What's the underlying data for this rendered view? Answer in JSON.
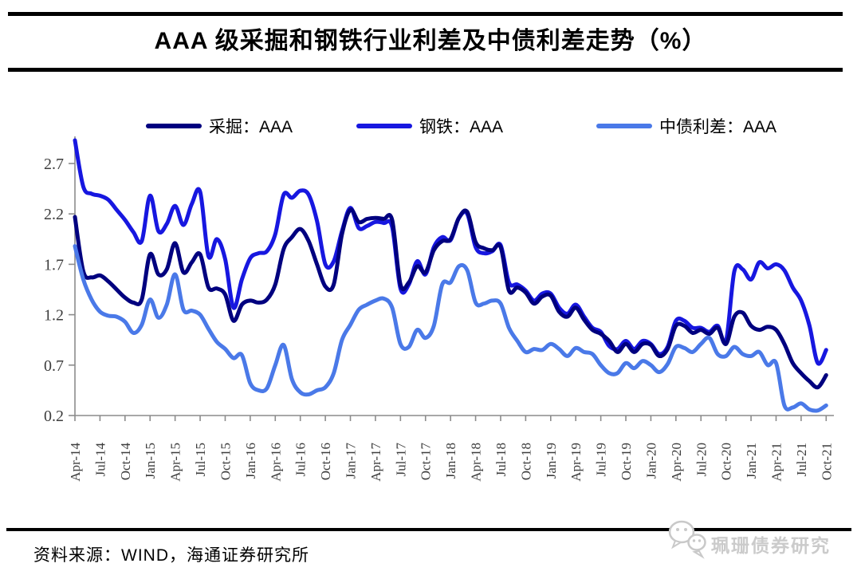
{
  "title": {
    "text": "AAA 级采掘和钢铁行业利差及中债利差走势（%）"
  },
  "legend": {
    "items": [
      {
        "label": "采掘：AAA",
        "color": "#00007f"
      },
      {
        "label": "钢铁：AAA",
        "color": "#1717e0"
      },
      {
        "label": "中债利差：AAA",
        "color": "#4a79e8"
      }
    ]
  },
  "footer": {
    "source": "资料来源：WIND，海通证券研究所",
    "watermark": "珮珊债券研究",
    "watermark_icon": "wechat-chat-bubbles"
  },
  "chart_data": {
    "type": "line",
    "title": "AAA 级采掘和钢铁行业利差及中债利差走势（%）",
    "unit": "%",
    "x_frequency": "monthly",
    "x_start": "Apr-14",
    "x_end": "Oct-21",
    "x_tick_labels": [
      "Apr-14",
      "Jul-14",
      "Oct-14",
      "Jan-15",
      "Apr-15",
      "Jul-15",
      "Oct-15",
      "Jan-16",
      "Apr-16",
      "Jul-16",
      "Oct-16",
      "Jan-17",
      "Apr-17",
      "Jul-17",
      "Oct-17",
      "Jan-18",
      "Apr-18",
      "Jul-18",
      "Oct-18",
      "Jan-19",
      "Apr-19",
      "Jul-19",
      "Oct-19",
      "Jan-20",
      "Apr-20",
      "Jul-20",
      "Oct-20",
      "Jan-21",
      "Apr-21",
      "Jul-21",
      "Oct-21"
    ],
    "yticks": [
      0.2,
      0.7,
      1.2,
      1.7,
      2.2,
      2.7
    ],
    "ylim": [
      0.1,
      2.95
    ],
    "grid": false,
    "legend_position": "top",
    "axis_color": "#8c8c8c",
    "tick_label_color": "#3d3d3d",
    "series": [
      {
        "name": "采掘：AAA",
        "color": "#00007f",
        "values": [
          2.17,
          1.63,
          1.57,
          1.59,
          1.53,
          1.45,
          1.37,
          1.32,
          1.35,
          1.8,
          1.6,
          1.65,
          1.91,
          1.62,
          1.72,
          1.8,
          1.47,
          1.46,
          1.4,
          1.14,
          1.3,
          1.34,
          1.32,
          1.35,
          1.5,
          1.85,
          1.97,
          2.05,
          1.93,
          1.7,
          1.48,
          1.5,
          2.0,
          2.24,
          2.12,
          2.15,
          2.16,
          2.15,
          2.14,
          1.5,
          1.52,
          1.68,
          1.62,
          1.84,
          1.93,
          1.95,
          2.16,
          2.22,
          1.92,
          1.86,
          1.84,
          1.87,
          1.44,
          1.47,
          1.42,
          1.31,
          1.38,
          1.39,
          1.23,
          1.18,
          1.27,
          1.15,
          1.05,
          1.01,
          0.94,
          0.83,
          0.91,
          0.83,
          0.91,
          0.9,
          0.79,
          0.86,
          1.09,
          1.09,
          1.02,
          1.05,
          1.01,
          1.07,
          0.91,
          1.18,
          1.22,
          1.09,
          1.05,
          1.08,
          1.05,
          0.91,
          0.72,
          0.62,
          0.54,
          0.48,
          0.6
        ]
      },
      {
        "name": "钢铁：AAA",
        "color": "#1717e0",
        "values": [
          2.93,
          2.47,
          2.4,
          2.38,
          2.34,
          2.24,
          2.14,
          2.02,
          1.93,
          2.38,
          2.03,
          2.1,
          2.28,
          2.09,
          2.3,
          2.42,
          1.78,
          1.95,
          1.75,
          1.27,
          1.55,
          1.76,
          1.81,
          1.83,
          2.0,
          2.39,
          2.36,
          2.43,
          2.39,
          2.13,
          1.7,
          1.73,
          2.03,
          2.26,
          2.06,
          2.08,
          2.12,
          2.11,
          2.07,
          1.46,
          1.5,
          1.73,
          1.6,
          1.87,
          1.97,
          1.94,
          2.16,
          2.2,
          1.87,
          1.81,
          1.83,
          1.89,
          1.52,
          1.5,
          1.44,
          1.34,
          1.41,
          1.41,
          1.27,
          1.21,
          1.3,
          1.18,
          1.07,
          1.03,
          0.89,
          0.86,
          0.94,
          0.86,
          0.94,
          0.91,
          0.81,
          0.88,
          1.14,
          1.14,
          1.07,
          1.07,
          1.03,
          1.09,
          0.94,
          1.63,
          1.65,
          1.55,
          1.72,
          1.66,
          1.7,
          1.64,
          1.47,
          1.34,
          1.09,
          0.72,
          0.85
        ]
      },
      {
        "name": "中债利差：AAA",
        "color": "#4a79e8",
        "values": [
          1.88,
          1.55,
          1.35,
          1.23,
          1.19,
          1.18,
          1.13,
          1.02,
          1.1,
          1.35,
          1.17,
          1.3,
          1.6,
          1.25,
          1.24,
          1.2,
          1.06,
          0.93,
          0.86,
          0.77,
          0.8,
          0.52,
          0.45,
          0.47,
          0.7,
          0.9,
          0.56,
          0.43,
          0.41,
          0.45,
          0.48,
          0.62,
          0.95,
          1.1,
          1.25,
          1.3,
          1.34,
          1.36,
          1.27,
          0.91,
          0.88,
          1.05,
          0.97,
          1.09,
          1.5,
          1.52,
          1.68,
          1.64,
          1.32,
          1.31,
          1.34,
          1.31,
          1.07,
          0.94,
          0.83,
          0.86,
          0.85,
          0.91,
          0.86,
          0.79,
          0.87,
          0.83,
          0.81,
          0.7,
          0.62,
          0.62,
          0.72,
          0.67,
          0.74,
          0.7,
          0.63,
          0.71,
          0.88,
          0.87,
          0.83,
          0.91,
          0.97,
          0.81,
          0.79,
          0.88,
          0.81,
          0.79,
          0.83,
          0.7,
          0.72,
          0.3,
          0.28,
          0.32,
          0.26,
          0.25,
          0.3
        ]
      }
    ]
  }
}
